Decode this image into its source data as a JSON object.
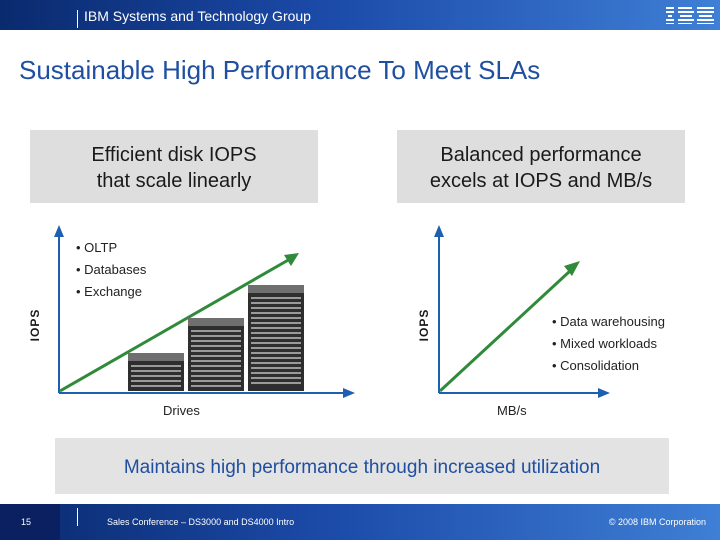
{
  "header": {
    "group_name": "IBM Systems and Technology Group",
    "logo_text": "IBM"
  },
  "title": "Sustainable High Performance To Meet SLAs",
  "left_panel": {
    "box_line1": "Efficient disk IOPS",
    "box_line2": "that scale linearly",
    "y_axis": "IOPS",
    "x_axis": "Drives",
    "bullets": [
      "• OLTP",
      "• Databases",
      "• Exchange"
    ]
  },
  "right_panel": {
    "box_line1": "Balanced performance",
    "box_line2": "excels at IOPS and MB/s",
    "y_axis": "IOPS",
    "x_axis": "MB/s",
    "bullets": [
      "• Data warehousing",
      "• Mixed workloads",
      "• Consolidation"
    ]
  },
  "summary": "Maintains high performance through increased utilization",
  "footer": {
    "page_number": "15",
    "conference": "Sales Conference – DS3000 and DS4000 Intro",
    "copyright": "© 2008 IBM Corporation"
  },
  "colors": {
    "accent_blue": "#1f4fa0",
    "arrow_green": "#2f8a3a",
    "axis_blue": "#1f5fb0"
  }
}
